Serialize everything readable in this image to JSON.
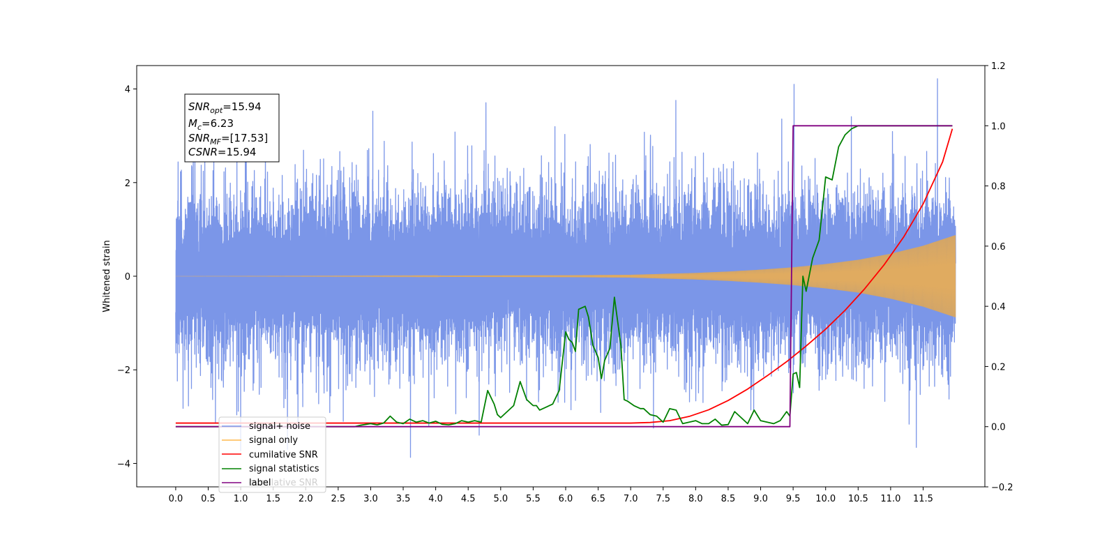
{
  "chart_data": {
    "type": "line",
    "title": "",
    "xlabel": "",
    "ylabel": "Whitened strain",
    "xlim": [
      -0.6,
      12.45
    ],
    "ylim": [
      -4.5,
      4.5
    ],
    "y2lim": [
      -0.2,
      1.2
    ],
    "xticks": [
      "0.0",
      "0.5",
      "1.0",
      "1.5",
      "2.0",
      "2.5",
      "3.0",
      "3.5",
      "4.0",
      "4.5",
      "5.0",
      "5.5",
      "6.0",
      "6.5",
      "7.0",
      "7.5",
      "8.0",
      "8.5",
      "9.0",
      "9.5",
      "10.0",
      "10.5",
      "11.0",
      "11.5"
    ],
    "yticks": [
      "−4",
      "−2",
      "0",
      "2",
      "4"
    ],
    "y2ticks": [
      "−0.2",
      "0.0",
      "0.2",
      "0.4",
      "0.6",
      "0.8",
      "1.0",
      "1.2"
    ],
    "colors": {
      "signal_noise": "#7b96e8",
      "signal_only": "#ffb84d",
      "signal_overlap": "#bb9c78",
      "cumulative_snr": "#ff0000",
      "signal_statistics": "#008000",
      "label": "#800080"
    },
    "stats_box": {
      "snr_opt_base": "SNR",
      "snr_opt_sub": "opt",
      "snr_opt_val": "=15.94",
      "mc_base": "M",
      "mc_sub": "c",
      "mc_val": "=6.23",
      "snr_mf_base": "SNR",
      "snr_mf_sub": "MF",
      "snr_mf_val": "=[17.53]",
      "csnr_base": "CSNR",
      "csnr_val": "=15.94"
    },
    "legend": {
      "placement": "lower-left",
      "entries": [
        "signal+ noise",
        "signal only",
        "cumilative SNR",
        "signal statistics",
        "label"
      ],
      "obscured_text": "cumilative SNR"
    },
    "series": [
      {
        "name": "signal+ noise",
        "axis": "left",
        "kind": "noise",
        "x_range": [
          0.0,
          12.0
        ],
        "approx_std": 0.9,
        "approx_range": [
          -4.1,
          4.1
        ]
      },
      {
        "name": "signal only",
        "axis": "left",
        "kind": "chirp_envelope",
        "x": [
          0.0,
          6.0,
          7.0,
          7.5,
          8.0,
          8.5,
          9.0,
          9.5,
          10.0,
          10.5,
          11.0,
          11.5,
          12.0
        ],
        "amplitude": [
          0.0,
          0.02,
          0.03,
          0.05,
          0.07,
          0.1,
          0.14,
          0.19,
          0.26,
          0.35,
          0.48,
          0.65,
          0.88
        ]
      },
      {
        "name": "cumilative SNR",
        "axis": "right",
        "x": [
          0.0,
          7.0,
          7.3,
          7.6,
          7.9,
          8.2,
          8.5,
          8.8,
          9.1,
          9.4,
          9.7,
          10.0,
          10.3,
          10.6,
          10.9,
          11.2,
          11.5,
          11.8,
          11.95
        ],
        "y": [
          0.012,
          0.012,
          0.014,
          0.02,
          0.034,
          0.056,
          0.087,
          0.125,
          0.169,
          0.216,
          0.268,
          0.324,
          0.387,
          0.458,
          0.538,
          0.63,
          0.74,
          0.88,
          0.99
        ]
      },
      {
        "name": "signal statistics",
        "axis": "right",
        "x": [
          0.0,
          2.75,
          2.85,
          3.0,
          3.1,
          3.2,
          3.3,
          3.4,
          3.5,
          3.6,
          3.7,
          3.8,
          3.9,
          4.0,
          4.1,
          4.2,
          4.3,
          4.4,
          4.5,
          4.6,
          4.7,
          4.8,
          4.9,
          4.95,
          5.0,
          5.1,
          5.2,
          5.3,
          5.4,
          5.5,
          5.55,
          5.6,
          5.65,
          5.7,
          5.8,
          5.9,
          6.0,
          6.05,
          6.1,
          6.15,
          6.2,
          6.3,
          6.35,
          6.42,
          6.5,
          6.55,
          6.6,
          6.68,
          6.75,
          6.85,
          6.9,
          6.95,
          7.05,
          7.15,
          7.2,
          7.3,
          7.4,
          7.5,
          7.6,
          7.7,
          7.8,
          7.9,
          8.0,
          8.1,
          8.2,
          8.3,
          8.4,
          8.5,
          8.6,
          8.7,
          8.8,
          8.9,
          9.0,
          9.1,
          9.2,
          9.3,
          9.4,
          9.45,
          9.5,
          9.55,
          9.6,
          9.65,
          9.7,
          9.8,
          9.9,
          10.0,
          10.1,
          10.2,
          10.3,
          10.4,
          10.5,
          10.6,
          10.7,
          10.8,
          11.0,
          11.5,
          11.95
        ],
        "y": [
          0.0,
          0.0,
          0.005,
          0.01,
          0.006,
          0.012,
          0.035,
          0.015,
          0.01,
          0.025,
          0.015,
          0.02,
          0.012,
          0.018,
          0.008,
          0.006,
          0.01,
          0.02,
          0.015,
          0.02,
          0.015,
          0.12,
          0.075,
          0.04,
          0.03,
          0.05,
          0.07,
          0.15,
          0.09,
          0.07,
          0.07,
          0.055,
          0.06,
          0.065,
          0.075,
          0.12,
          0.315,
          0.29,
          0.28,
          0.25,
          0.39,
          0.4,
          0.365,
          0.27,
          0.23,
          0.16,
          0.22,
          0.26,
          0.43,
          0.27,
          0.09,
          0.085,
          0.07,
          0.06,
          0.06,
          0.04,
          0.035,
          0.015,
          0.06,
          0.055,
          0.01,
          0.015,
          0.02,
          0.01,
          0.01,
          0.025,
          0.005,
          0.007,
          0.05,
          0.03,
          0.01,
          0.055,
          0.02,
          0.015,
          0.01,
          0.02,
          0.05,
          0.035,
          0.175,
          0.18,
          0.13,
          0.5,
          0.45,
          0.56,
          0.62,
          0.83,
          0.82,
          0.93,
          0.97,
          0.99,
          1.0,
          1.0,
          1.0,
          1.0,
          1.0,
          1.0,
          1.0
        ]
      },
      {
        "name": "label",
        "axis": "right",
        "x": [
          0.0,
          9.45,
          9.5,
          11.95
        ],
        "y": [
          0.0,
          0.0,
          1.0,
          1.0
        ]
      }
    ]
  }
}
